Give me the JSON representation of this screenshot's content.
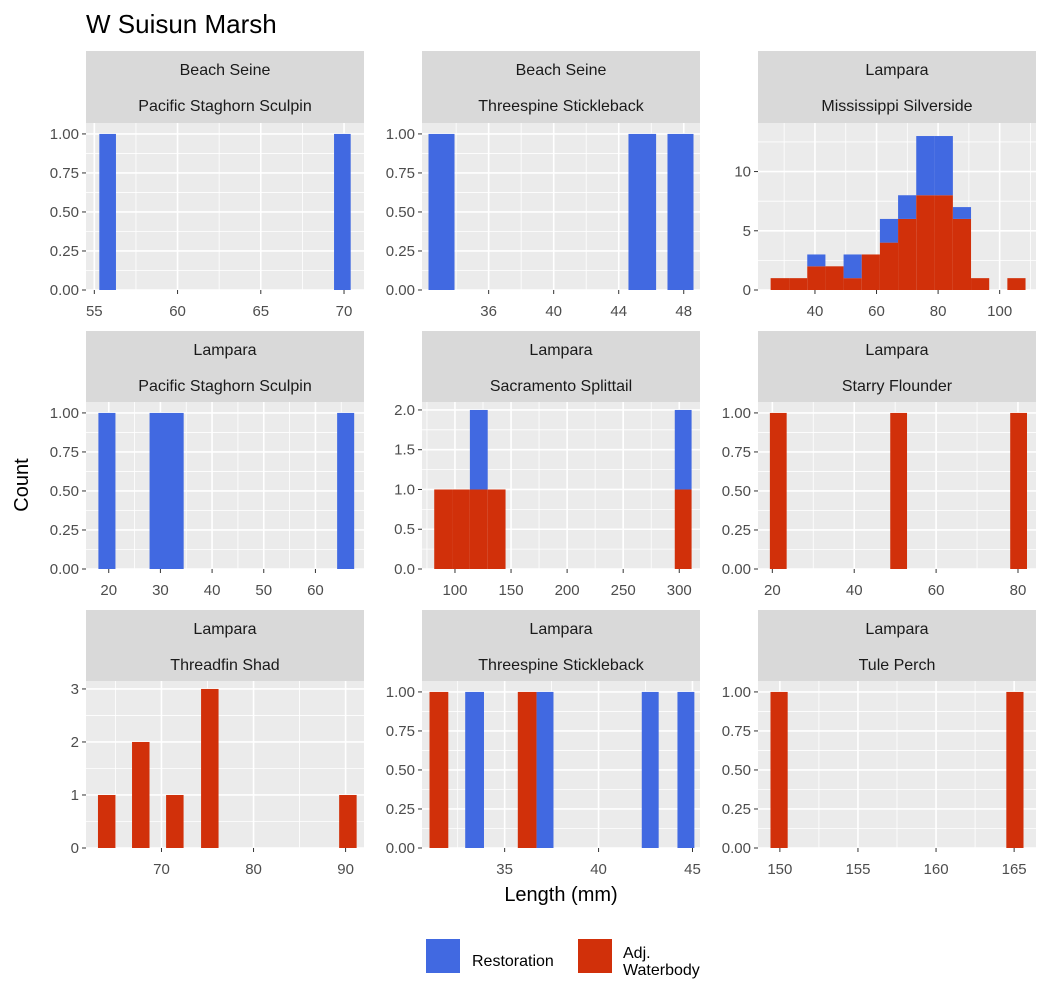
{
  "title": "W Suisun Marsh",
  "xlabel": "Length (mm)",
  "ylabel": "Count",
  "colors": {
    "Restoration": "#4169e1",
    "Adj. Waterbody": "#d1300a",
    "panel_bg": "#ebebeb",
    "strip_bg": "#d9d9d9",
    "grid": "#ffffff"
  },
  "legend": {
    "position": "bottom",
    "items": [
      {
        "key": "Restoration",
        "lines": [
          "Restoration"
        ]
      },
      {
        "key": "Adj. Waterbody",
        "lines": [
          "Adj.",
          "Waterbody"
        ]
      }
    ]
  },
  "chart_data": [
    {
      "type": "bar",
      "stacked": true,
      "strip": [
        "Beach Seine",
        "Pacific Staghorn Sculpin"
      ],
      "xlim": [
        54.5,
        71.2
      ],
      "xticks": [
        55,
        60,
        65,
        70
      ],
      "ylim": [
        0,
        1.07
      ],
      "yticks": [
        "0.00",
        "0.25",
        "0.50",
        "0.75",
        "1.00"
      ],
      "bars": [
        {
          "x0": 55.3,
          "x1": 56.3,
          "restoration": 1,
          "adj": 0
        },
        {
          "x0": 69.4,
          "x1": 70.4,
          "restoration": 1,
          "adj": 0
        }
      ]
    },
    {
      "type": "bar",
      "stacked": true,
      "strip": [
        "Beach Seine",
        "Threespine Stickleback"
      ],
      "xlim": [
        31.9,
        49.0
      ],
      "xticks": [
        36,
        40,
        44,
        48
      ],
      "ylim": [
        0,
        1.07
      ],
      "yticks": [
        "0.00",
        "0.25",
        "0.50",
        "0.75",
        "1.00"
      ],
      "bars": [
        {
          "x0": 32.3,
          "x1": 33.9,
          "restoration": 1,
          "adj": 0
        },
        {
          "x0": 44.6,
          "x1": 46.3,
          "restoration": 1,
          "adj": 0
        },
        {
          "x0": 47.0,
          "x1": 48.6,
          "restoration": 1,
          "adj": 0
        }
      ]
    },
    {
      "type": "bar",
      "stacked": true,
      "strip": [
        "Lampara",
        "Mississippi Silverside"
      ],
      "xlim": [
        21.5,
        111.8
      ],
      "xticks": [
        40,
        60,
        80,
        100
      ],
      "ylim": [
        0,
        14.1
      ],
      "yticks": [
        "0",
        "5",
        "10"
      ],
      "bars": [
        {
          "x0": 25.6,
          "x1": 31.6,
          "restoration": 0,
          "adj": 1
        },
        {
          "x0": 31.6,
          "x1": 37.5,
          "restoration": 0,
          "adj": 1
        },
        {
          "x0": 37.5,
          "x1": 43.4,
          "restoration": 1,
          "adj": 2
        },
        {
          "x0": 43.4,
          "x1": 49.3,
          "restoration": 0,
          "adj": 2
        },
        {
          "x0": 49.3,
          "x1": 55.2,
          "restoration": 2,
          "adj": 1
        },
        {
          "x0": 55.2,
          "x1": 61.1,
          "restoration": 0,
          "adj": 3
        },
        {
          "x0": 61.1,
          "x1": 67.0,
          "restoration": 2,
          "adj": 4
        },
        {
          "x0": 67.0,
          "x1": 72.9,
          "restoration": 2,
          "adj": 6
        },
        {
          "x0": 72.9,
          "x1": 78.8,
          "restoration": 5,
          "adj": 8
        },
        {
          "x0": 78.8,
          "x1": 84.8,
          "restoration": 5,
          "adj": 8
        },
        {
          "x0": 84.8,
          "x1": 90.7,
          "restoration": 1,
          "adj": 6
        },
        {
          "x0": 90.7,
          "x1": 96.6,
          "restoration": 0,
          "adj": 1
        },
        {
          "x0": 102.5,
          "x1": 108.4,
          "restoration": 0,
          "adj": 1
        }
      ]
    },
    {
      "type": "bar",
      "stacked": true,
      "strip": [
        "Lampara",
        "Pacific Staghorn Sculpin"
      ],
      "xlim": [
        15.6,
        69.4
      ],
      "xticks": [
        20,
        30,
        40,
        50,
        60
      ],
      "ylim": [
        0,
        1.07
      ],
      "yticks": [
        "0.00",
        "0.25",
        "0.50",
        "0.75",
        "1.00"
      ],
      "bars": [
        {
          "x0": 18.0,
          "x1": 21.3,
          "restoration": 1,
          "adj": 0
        },
        {
          "x0": 27.9,
          "x1": 34.5,
          "restoration": 1,
          "adj": 0
        },
        {
          "x0": 64.2,
          "x1": 67.5,
          "restoration": 1,
          "adj": 0
        }
      ]
    },
    {
      "type": "bar",
      "stacked": true,
      "strip": [
        "Lampara",
        "Sacramento Splittail"
      ],
      "xlim": [
        70.6,
        318.5
      ],
      "xticks": [
        100,
        150,
        200,
        250,
        300
      ],
      "ylim": [
        0,
        2.1
      ],
      "yticks": [
        "0.0",
        "0.5",
        "1.0",
        "1.5",
        "2.0"
      ],
      "bars": [
        {
          "x0": 81.5,
          "x1": 97.4,
          "restoration": 0,
          "adj": 1
        },
        {
          "x0": 97.4,
          "x1": 113.3,
          "restoration": 0,
          "adj": 1
        },
        {
          "x0": 113.3,
          "x1": 129.2,
          "restoration": 1,
          "adj": 1
        },
        {
          "x0": 129.2,
          "x1": 145.1,
          "restoration": 0,
          "adj": 1
        },
        {
          "x0": 296.0,
          "x1": 311.0,
          "restoration": 1,
          "adj": 1
        }
      ]
    },
    {
      "type": "bar",
      "stacked": true,
      "strip": [
        "Lampara",
        "Starry Flounder"
      ],
      "xlim": [
        16.5,
        84.4
      ],
      "xticks": [
        20,
        40,
        60,
        80
      ],
      "ylim": [
        0,
        1.07
      ],
      "yticks": [
        "0.00",
        "0.25",
        "0.50",
        "0.75",
        "1.00"
      ],
      "bars": [
        {
          "x0": 19.4,
          "x1": 23.5,
          "restoration": 0,
          "adj": 1
        },
        {
          "x0": 48.8,
          "x1": 52.9,
          "restoration": 0,
          "adj": 1
        },
        {
          "x0": 78.1,
          "x1": 82.2,
          "restoration": 0,
          "adj": 1
        }
      ]
    },
    {
      "type": "bar",
      "stacked": true,
      "strip": [
        "Lampara",
        "Threadfin Shad"
      ],
      "xlim": [
        61.8,
        92.0
      ],
      "xticks": [
        70,
        80,
        90
      ],
      "ylim": [
        0,
        3.15
      ],
      "yticks": [
        "0",
        "1",
        "2",
        "3"
      ],
      "bars": [
        {
          "x0": 63.1,
          "x1": 65.0,
          "restoration": 0,
          "adj": 1
        },
        {
          "x0": 66.8,
          "x1": 68.7,
          "restoration": 0,
          "adj": 2
        },
        {
          "x0": 70.5,
          "x1": 72.4,
          "restoration": 0,
          "adj": 1
        },
        {
          "x0": 74.3,
          "x1": 76.2,
          "restoration": 0,
          "adj": 3
        },
        {
          "x0": 89.3,
          "x1": 91.2,
          "restoration": 0,
          "adj": 1
        }
      ]
    },
    {
      "type": "bar",
      "stacked": true,
      "strip": [
        "Lampara",
        "Threespine Stickleback"
      ],
      "xlim": [
        30.6,
        45.4
      ],
      "xticks": [
        35,
        40,
        45
      ],
      "ylim": [
        0,
        1.07
      ],
      "yticks": [
        "0.00",
        "0.25",
        "0.50",
        "0.75",
        "1.00"
      ],
      "bars": [
        {
          "x0": 31.0,
          "x1": 32.0,
          "restoration": 0,
          "adj": 1
        },
        {
          "x0": 32.9,
          "x1": 33.9,
          "restoration": 1,
          "adj": 0
        },
        {
          "x0": 35.7,
          "x1": 36.7,
          "restoration": 0,
          "adj": 1
        },
        {
          "x0": 36.7,
          "x1": 37.6,
          "restoration": 1,
          "adj": 0
        },
        {
          "x0": 42.3,
          "x1": 43.2,
          "restoration": 1,
          "adj": 0
        },
        {
          "x0": 44.2,
          "x1": 45.1,
          "restoration": 1,
          "adj": 0
        }
      ]
    },
    {
      "type": "bar",
      "stacked": true,
      "strip": [
        "Lampara",
        "Tule Perch"
      ],
      "xlim": [
        148.6,
        166.4
      ],
      "xticks": [
        150,
        155,
        160,
        165
      ],
      "ylim": [
        0,
        1.07
      ],
      "yticks": [
        "0.00",
        "0.25",
        "0.50",
        "0.75",
        "1.00"
      ],
      "bars": [
        {
          "x0": 149.4,
          "x1": 150.5,
          "restoration": 0,
          "adj": 1
        },
        {
          "x0": 164.5,
          "x1": 165.6,
          "restoration": 0,
          "adj": 1
        }
      ]
    }
  ]
}
